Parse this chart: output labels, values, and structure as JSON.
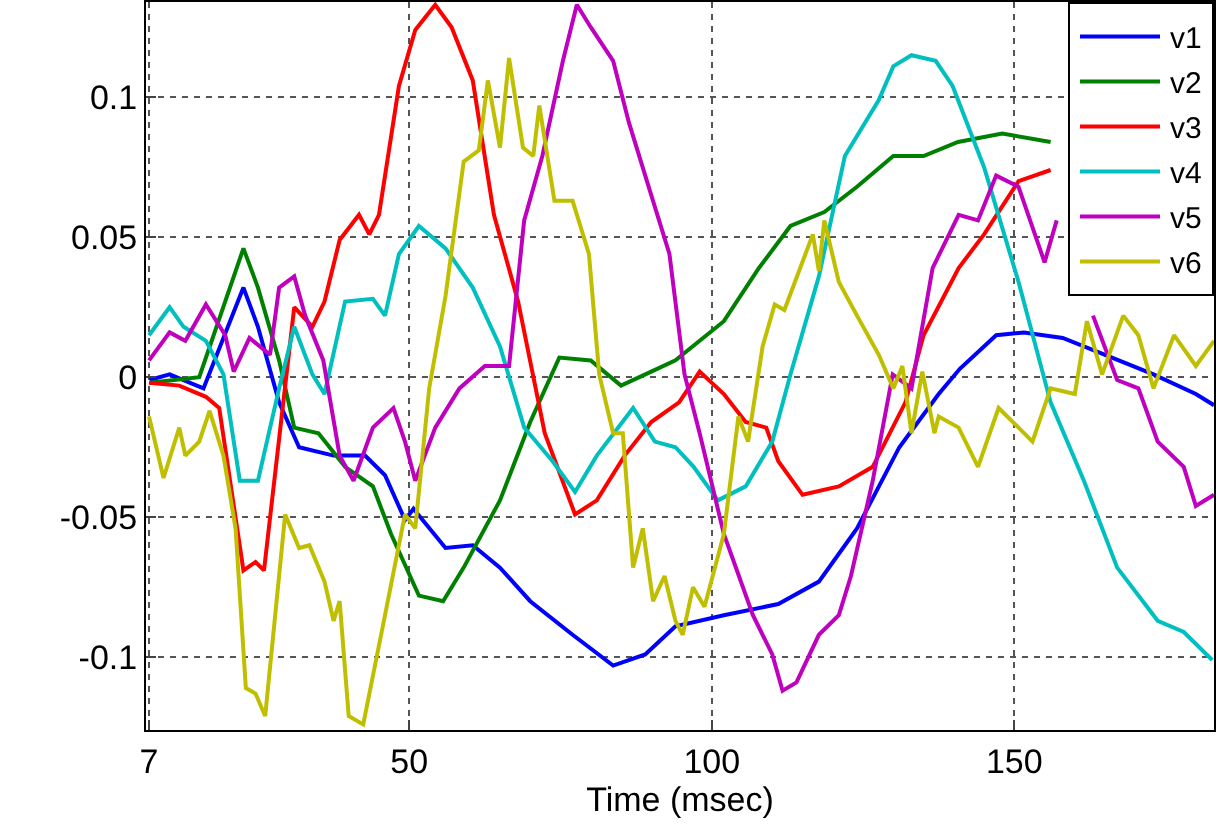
{
  "chart_data": {
    "type": "line",
    "xlabel": "Time (msec)",
    "xlim": [
      6.5,
      183
    ],
    "xticks": [
      7,
      50,
      100,
      150
    ],
    "ylim": [
      -0.126,
      0.134
    ],
    "yticks": [
      -0.1,
      -0.05,
      0,
      0.05,
      0.1
    ],
    "grid": true,
    "legend": "top right",
    "line_style": "solid",
    "marker": "none",
    "series": [
      {
        "name": "v1",
        "color": "#0000ff",
        "x": [
          7.1,
          10.4,
          16,
          22.6,
          25,
          28.5,
          31.8,
          37.5,
          42.7,
          46,
          49.3,
          50.7,
          56,
          60.5,
          65,
          70,
          77,
          83.7,
          89,
          94,
          102,
          111,
          117.7,
          124,
          131,
          137.5,
          141,
          147,
          151.6,
          158,
          165,
          173,
          180,
          183
        ],
        "values": [
          -0.001,
          0.001,
          -0.004,
          0.032,
          0.018,
          -0.009,
          -0.025,
          -0.028,
          -0.028,
          -0.035,
          -0.051,
          -0.047,
          -0.061,
          -0.06,
          -0.068,
          -0.08,
          -0.092,
          -0.103,
          -0.099,
          -0.089,
          -0.085,
          -0.081,
          -0.073,
          -0.054,
          -0.025,
          -0.006,
          0.003,
          0.015,
          0.016,
          0.014,
          0.008,
          0.001,
          -0.006,
          -0.01
        ]
      },
      {
        "name": "v2",
        "color": "#008000",
        "x": [
          7.1,
          15.3,
          22.6,
          25,
          28.5,
          31,
          35,
          39.4,
          44,
          47,
          51.6,
          55.6,
          59,
          65,
          70,
          74.8,
          80,
          85,
          90,
          94,
          98,
          102,
          107.8,
          113,
          118.6,
          124,
          130,
          135,
          140.7,
          148,
          156
        ],
        "values": [
          -0.002,
          0,
          0.046,
          0.032,
          0.006,
          -0.018,
          -0.02,
          -0.032,
          -0.039,
          -0.056,
          -0.078,
          -0.08,
          -0.068,
          -0.044,
          -0.016,
          0.007,
          0.006,
          -0.003,
          0.002,
          0.006,
          0.013,
          0.02,
          0.039,
          0.054,
          0.059,
          0.068,
          0.079,
          0.079,
          0.084,
          0.087,
          0.084
        ]
      },
      {
        "name": "v3",
        "color": "#ff0000",
        "x": [
          7,
          12,
          16.4,
          18.6,
          22.6,
          24.6,
          26,
          31,
          34,
          36,
          38.5,
          41.7,
          43.4,
          45,
          48.3,
          51,
          54.3,
          57,
          60.5,
          64,
          68,
          72.4,
          77.4,
          81,
          85.6,
          90,
          94.6,
          98,
          102,
          105.6,
          109,
          111,
          115,
          121,
          126.6,
          132,
          135,
          140.8,
          145,
          150.7,
          156
        ],
        "values": [
          -0.002,
          -0.003,
          -0.007,
          -0.011,
          -0.069,
          -0.066,
          -0.069,
          0.025,
          0.018,
          0.027,
          0.049,
          0.058,
          0.051,
          0.058,
          0.104,
          0.124,
          0.133,
          0.125,
          0.106,
          0.058,
          0.027,
          -0.02,
          -0.049,
          -0.044,
          -0.028,
          -0.016,
          -0.009,
          0.002,
          -0.006,
          -0.016,
          -0.018,
          -0.03,
          -0.042,
          -0.039,
          -0.032,
          -0.009,
          0.015,
          0.039,
          0.051,
          0.07,
          0.074
        ]
      },
      {
        "name": "v4",
        "color": "#00bfbf",
        "x": [
          7,
          10.4,
          12.7,
          16.4,
          19.3,
          22,
          25,
          28.5,
          31,
          34,
          36,
          39.4,
          44,
          46,
          48.3,
          51.6,
          56,
          60.5,
          65,
          69,
          73.7,
          77.4,
          81,
          87,
          90.6,
          94,
          97,
          101,
          105.6,
          110,
          113,
          117.7,
          122,
          127.6,
          130,
          133,
          137,
          139.8,
          145,
          150.7,
          156,
          161.5,
          167,
          173.7,
          178,
          182.7
        ],
        "values": [
          0.015,
          0.025,
          0.018,
          0.013,
          0.001,
          -0.037,
          -0.037,
          -0.004,
          0.018,
          0.001,
          -0.006,
          0.027,
          0.028,
          0.022,
          0.044,
          0.054,
          0.046,
          0.032,
          0.011,
          -0.018,
          -0.03,
          -0.041,
          -0.028,
          -0.011,
          -0.023,
          -0.025,
          -0.032,
          -0.044,
          -0.039,
          -0.023,
          0.001,
          0.036,
          0.079,
          0.099,
          0.111,
          0.115,
          0.113,
          0.104,
          0.075,
          0.034,
          -0.009,
          -0.037,
          -0.068,
          -0.087,
          -0.091,
          -0.101
        ]
      },
      {
        "name": "v5",
        "color": "#bf00bf",
        "x": [
          7,
          10.4,
          13,
          16.4,
          19.6,
          21,
          23.6,
          27,
          28.5,
          31,
          32.8,
          35.8,
          38.5,
          40.8,
          44,
          47.4,
          49.3,
          51,
          54.3,
          58.3,
          62.5,
          66.5,
          69,
          72,
          75.4,
          77.7,
          80,
          83.7,
          86.3,
          90,
          93,
          95.5,
          98,
          102,
          106.8,
          110,
          111.7,
          114,
          117.7,
          121,
          123,
          126.6,
          129.9,
          133,
          136.5,
          140.8,
          144,
          147,
          150.7,
          155,
          157,
          160,
          163,
          167,
          170.5,
          173.7,
          178,
          180,
          183
        ],
        "values": [
          0.006,
          0.016,
          0.013,
          0.026,
          0.015,
          0.002,
          0.014,
          0.008,
          0.032,
          0.036,
          0.022,
          0.006,
          -0.028,
          -0.037,
          -0.018,
          -0.011,
          -0.023,
          -0.037,
          -0.018,
          -0.004,
          0.004,
          0.004,
          0.056,
          0.079,
          0.113,
          0.133,
          0.125,
          0.113,
          0.091,
          0.065,
          0.044,
          0.001,
          -0.02,
          -0.056,
          -0.085,
          -0.099,
          -0.112,
          -0.109,
          -0.092,
          -0.085,
          -0.071,
          -0.037,
          0.001,
          -0.004,
          0.039,
          0.058,
          0.056,
          0.072,
          0.068,
          0.041,
          0.056,
          null,
          0.022,
          -0.001,
          -0.004,
          -0.023,
          -0.032,
          -0.046,
          -0.042
        ]
      },
      {
        "name": "v6",
        "color": "#bfbf00",
        "x": [
          7,
          9.4,
          12,
          13,
          15.3,
          17,
          19.3,
          21.3,
          23,
          24.6,
          26.2,
          29.5,
          31.8,
          33.5,
          36,
          37.5,
          38.5,
          40,
          42.4,
          46,
          49.3,
          51,
          53.3,
          56,
          59,
          61.5,
          63,
          65,
          66.5,
          68.8,
          70.5,
          71.5,
          74,
          77,
          79.7,
          81.4,
          83.7,
          85.3,
          87,
          88.6,
          90.3,
          92.2,
          94,
          95.2,
          96.9,
          98.8,
          102,
          104.4,
          106,
          108.4,
          110.4,
          112,
          116.7,
          117.7,
          118.6,
          121,
          124,
          127.6,
          130,
          131.5,
          133,
          134.8,
          136.8,
          137.5,
          140.8,
          144,
          147.4,
          150.7,
          153,
          156,
          160,
          162,
          164.5,
          168,
          170.5,
          173,
          176.4,
          180,
          183
        ],
        "values": [
          -0.014,
          -0.036,
          -0.018,
          -0.028,
          -0.023,
          -0.012,
          -0.028,
          -0.054,
          -0.111,
          -0.113,
          -0.121,
          -0.049,
          -0.061,
          -0.06,
          -0.073,
          -0.087,
          -0.08,
          -0.121,
          -0.124,
          -0.085,
          -0.049,
          -0.054,
          -0.004,
          0.029,
          0.077,
          0.081,
          0.106,
          0.082,
          0.114,
          0.082,
          0.079,
          0.097,
          0.063,
          0.063,
          0.044,
          0.001,
          -0.02,
          -0.02,
          -0.068,
          -0.054,
          -0.08,
          -0.071,
          -0.087,
          -0.092,
          -0.075,
          -0.082,
          -0.056,
          -0.014,
          -0.023,
          0.011,
          0.026,
          0.024,
          0.051,
          0.038,
          0.056,
          0.034,
          0.022,
          0.008,
          -0.004,
          0.004,
          -0.02,
          0.002,
          -0.02,
          -0.014,
          -0.018,
          -0.032,
          -0.011,
          -0.018,
          -0.023,
          -0.004,
          -0.006,
          0.02,
          0.001,
          0.022,
          0.015,
          -0.004,
          0.015,
          0.004,
          0.013
        ]
      }
    ]
  }
}
